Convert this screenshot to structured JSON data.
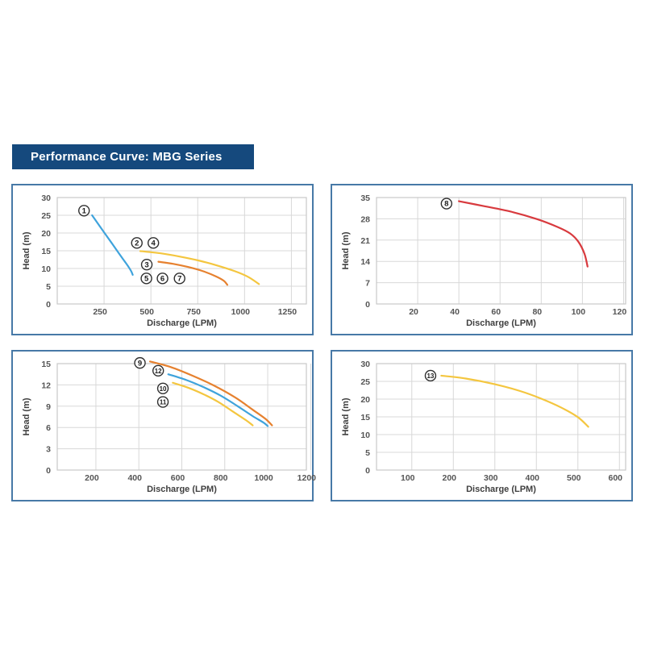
{
  "page": {
    "title": "Performance Curve: MBG Series",
    "title_bg": "#15497d",
    "title_color": "#ffffff"
  },
  "style": {
    "panel_border": "#4779a7",
    "grid_color": "#d8d8d8",
    "plot_border": "#c9c9c9",
    "tick_label_color": "#555555",
    "axis_title_color": "#3f3f3f",
    "marker_stroke": "#2f2f2f",
    "marker_fill": "#ffffff",
    "marker_text_color": "#1a1a1a"
  },
  "chart_data": [
    {
      "type": "line",
      "position": "top-left",
      "title": "",
      "xlabel": "Discharge (LPM)",
      "ylabel": "Head (m)",
      "xlim": [
        0,
        1330
      ],
      "ylim": [
        0,
        30
      ],
      "xticks": [
        250,
        500,
        750,
        1000,
        1250
      ],
      "yticks": [
        0,
        5,
        10,
        15,
        20,
        25,
        30
      ],
      "series": [
        {
          "name": "curve-1",
          "color": "#3fa3dc",
          "points": [
            [
              186,
              25
            ],
            [
              235,
              21.3
            ],
            [
              285,
              17.6
            ],
            [
              330,
              14.2
            ],
            [
              360,
              12.0
            ],
            [
              380,
              10.5
            ],
            [
              395,
              9.2
            ],
            [
              403,
              8.2
            ]
          ]
        },
        {
          "name": "curve-2-4",
          "color": "#f4c63f",
          "points": [
            [
              443,
              14.9
            ],
            [
              550,
              14.3
            ],
            [
              650,
              13.4
            ],
            [
              750,
              12.3
            ],
            [
              850,
              10.9
            ],
            [
              950,
              9.2
            ],
            [
              1020,
              7.6
            ],
            [
              1077,
              5.6
            ]
          ]
        },
        {
          "name": "curve-3",
          "color": "#e6812f",
          "points": [
            [
              540,
              11.9
            ],
            [
              620,
              11.3
            ],
            [
              700,
              10.4
            ],
            [
              780,
              9.2
            ],
            [
              850,
              7.7
            ],
            [
              890,
              6.5
            ],
            [
              908,
              5.4
            ]
          ]
        }
      ],
      "markers": [
        {
          "label": "1",
          "x": 143,
          "y": 26.3
        },
        {
          "label": "2",
          "x": 425,
          "y": 17.2
        },
        {
          "label": "4",
          "x": 513,
          "y": 17.2
        },
        {
          "label": "3",
          "x": 478,
          "y": 11.1
        },
        {
          "label": "5",
          "x": 476,
          "y": 7.2
        },
        {
          "label": "6",
          "x": 562,
          "y": 7.2
        },
        {
          "label": "7",
          "x": 653,
          "y": 7.2
        }
      ]
    },
    {
      "type": "line",
      "position": "top-right",
      "title": "",
      "xlabel": "Discharge (LPM)",
      "ylabel": "Head (m)",
      "xlim": [
        0,
        121
      ],
      "ylim": [
        0,
        35
      ],
      "xticks": [
        20,
        40,
        60,
        80,
        100,
        120
      ],
      "yticks": [
        0,
        7,
        14,
        21,
        28,
        35
      ],
      "series": [
        {
          "name": "curve-8",
          "color": "#d83a3e",
          "points": [
            [
              40,
              33.8
            ],
            [
              52,
              32.2
            ],
            [
              65,
              30.4
            ],
            [
              78,
              27.9
            ],
            [
              88,
              25.3
            ],
            [
              94,
              23.2
            ],
            [
              98,
              20.5
            ],
            [
              101,
              16.5
            ],
            [
              102.5,
              12.3
            ]
          ]
        }
      ],
      "markers": [
        {
          "label": "8",
          "x": 34,
          "y": 33.0
        }
      ]
    },
    {
      "type": "line",
      "position": "bottom-left",
      "title": "",
      "xlabel": "Discharge (LPM)",
      "ylabel": "Head (m)",
      "xlim": [
        20,
        1180
      ],
      "ylim": [
        0,
        15
      ],
      "xticks": [
        200,
        400,
        600,
        800,
        1000,
        1200
      ],
      "yticks": [
        0,
        3,
        6,
        9,
        12,
        15
      ],
      "series": [
        {
          "name": "curve-9",
          "color": "#e6812f",
          "points": [
            [
              452,
              15.3
            ],
            [
              550,
              14.5
            ],
            [
              650,
              13.3
            ],
            [
              750,
              11.9
            ],
            [
              850,
              10.2
            ],
            [
              930,
              8.5
            ],
            [
              990,
              7.2
            ],
            [
              1020,
              6.3
            ]
          ]
        },
        {
          "name": "curve-12",
          "color": "#3fa3dc",
          "points": [
            [
              537,
              13.5
            ],
            [
              620,
              12.7
            ],
            [
              700,
              11.7
            ],
            [
              780,
              10.5
            ],
            [
              860,
              9.0
            ],
            [
              930,
              7.6
            ],
            [
              980,
              6.7
            ],
            [
              1000,
              6.2
            ]
          ]
        },
        {
          "name": "curve-10-11",
          "color": "#f4c63f",
          "points": [
            [
              558,
              12.3
            ],
            [
              630,
              11.6
            ],
            [
              700,
              10.7
            ],
            [
              770,
              9.6
            ],
            [
              840,
              8.2
            ],
            [
              900,
              7.0
            ],
            [
              930,
              6.3
            ]
          ]
        }
      ],
      "markers": [
        {
          "label": "9",
          "x": 405,
          "y": 15.1
        },
        {
          "label": "12",
          "x": 490,
          "y": 14.0
        },
        {
          "label": "10",
          "x": 512,
          "y": 11.5
        },
        {
          "label": "11",
          "x": 512,
          "y": 9.6
        }
      ]
    },
    {
      "type": "line",
      "position": "bottom-right",
      "title": "",
      "xlabel": "Discharge (LPM)",
      "ylabel": "Head (m)",
      "xlim": [
        15,
        615
      ],
      "ylim": [
        0,
        30
      ],
      "xticks": [
        100,
        200,
        300,
        400,
        500,
        600
      ],
      "yticks": [
        0,
        5,
        10,
        15,
        20,
        25,
        30
      ],
      "series": [
        {
          "name": "curve-13",
          "color": "#f4c63f",
          "points": [
            [
              171,
              26.6
            ],
            [
              230,
              25.8
            ],
            [
              300,
              24.2
            ],
            [
              360,
              22.3
            ],
            [
              410,
              20.2
            ],
            [
              460,
              17.6
            ],
            [
              500,
              14.9
            ],
            [
              525,
              12.2
            ]
          ]
        }
      ],
      "markers": [
        {
          "label": "13",
          "x": 145,
          "y": 26.6
        }
      ]
    }
  ]
}
